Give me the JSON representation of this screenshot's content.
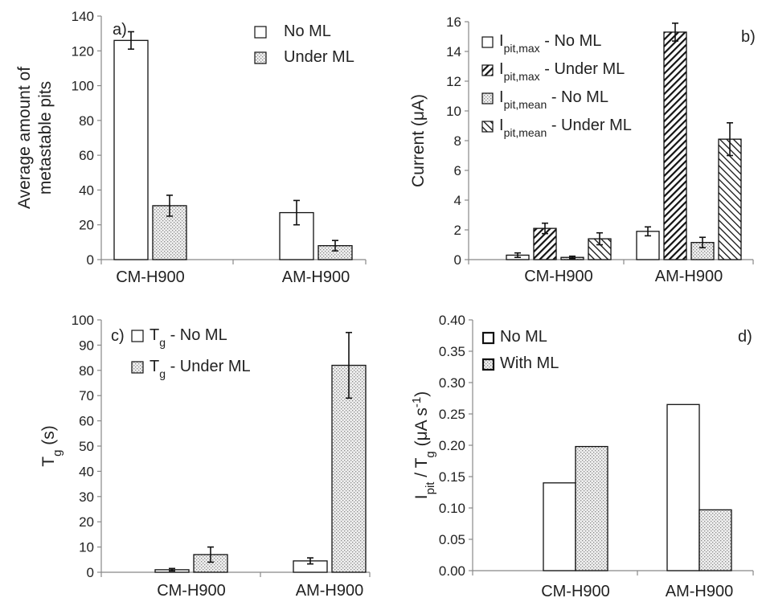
{
  "chart_data": [
    {
      "type": "bar",
      "panel_label": "a)",
      "categories": [
        "CM-H900",
        "AM-H900"
      ],
      "ylabel_line1": "Average amount of",
      "ylabel_line2": "metastable pits",
      "ylim": [
        0,
        140
      ],
      "yticks": [
        "0",
        "20",
        "40",
        "60",
        "80",
        "100",
        "120",
        "140"
      ],
      "series": [
        {
          "name": "No ML",
          "pattern": "white",
          "values": [
            126,
            27
          ],
          "errors": [
            5,
            7
          ]
        },
        {
          "name": "Under ML",
          "pattern": "dots",
          "values": [
            31,
            8
          ],
          "errors": [
            6,
            3
          ]
        }
      ]
    },
    {
      "type": "bar",
      "panel_label": "b)",
      "categories": [
        "CM-H900",
        "AM-H900"
      ],
      "ylabel": "Current (μA)",
      "ylim": [
        0,
        16
      ],
      "yticks": [
        "0",
        "2",
        "4",
        "6",
        "8",
        "10",
        "12",
        "14",
        "16"
      ],
      "series": [
        {
          "name": "I",
          "sub": "pit,max",
          "suffix": " - No ML",
          "pattern": "white",
          "values": [
            0.3,
            1.9
          ],
          "errors": [
            0.15,
            0.3
          ]
        },
        {
          "name": "I",
          "sub": "pit,max",
          "suffix": " - Under ML",
          "pattern": "hatch-dense",
          "values": [
            2.1,
            15.3
          ],
          "errors": [
            0.35,
            0.6
          ]
        },
        {
          "name": "I",
          "sub": "pit,mean",
          "suffix": " - No ML",
          "pattern": "dots",
          "values": [
            0.15,
            1.15
          ],
          "errors": [
            0.08,
            0.35
          ]
        },
        {
          "name": "I",
          "sub": "pit,mean",
          "suffix": " - Under ML",
          "pattern": "hatch-sparse",
          "values": [
            1.4,
            8.1
          ],
          "errors": [
            0.4,
            1.1
          ]
        }
      ]
    },
    {
      "type": "bar",
      "panel_label": "c)",
      "categories": [
        "CM-H900",
        "AM-H900"
      ],
      "ylabel": "T",
      "ylabel_sub": "g",
      "ylabel_suffix": " (s)",
      "ylim": [
        0,
        100
      ],
      "yticks": [
        "0",
        "10",
        "20",
        "30",
        "40",
        "50",
        "60",
        "70",
        "80",
        "90",
        "100"
      ],
      "series": [
        {
          "name": "T",
          "sub": "g",
          "suffix": " - No ML",
          "pattern": "white",
          "values": [
            1,
            4.5
          ],
          "errors": [
            0.5,
            1.2
          ]
        },
        {
          "name": "T",
          "sub": "g",
          "suffix": " - Under ML",
          "pattern": "dots",
          "values": [
            7,
            82
          ],
          "errors": [
            3,
            13
          ]
        }
      ]
    },
    {
      "type": "bar",
      "panel_label": "d)",
      "categories": [
        "CM-H900",
        "AM-H900"
      ],
      "ylabel_parts": [
        {
          "t": "I"
        },
        {
          "t": "pit",
          "sub": true
        },
        {
          "t": " / T"
        },
        {
          "t": "g",
          "sub": true
        },
        {
          "t": " (μA s"
        },
        {
          "t": "-1",
          "sup": true
        },
        {
          "t": ")"
        }
      ],
      "ylim": [
        0,
        0.4
      ],
      "yticks": [
        "0.00",
        "0.05",
        "0.10",
        "0.15",
        "0.20",
        "0.25",
        "0.30",
        "0.35",
        "0.40"
      ],
      "series": [
        {
          "name": "No ML",
          "pattern": "white",
          "values": [
            0.14,
            0.265
          ],
          "errors": [
            null,
            null
          ]
        },
        {
          "name": "With ML",
          "pattern": "dots",
          "values": [
            0.198,
            0.097
          ],
          "errors": [
            null,
            null
          ]
        }
      ]
    }
  ]
}
